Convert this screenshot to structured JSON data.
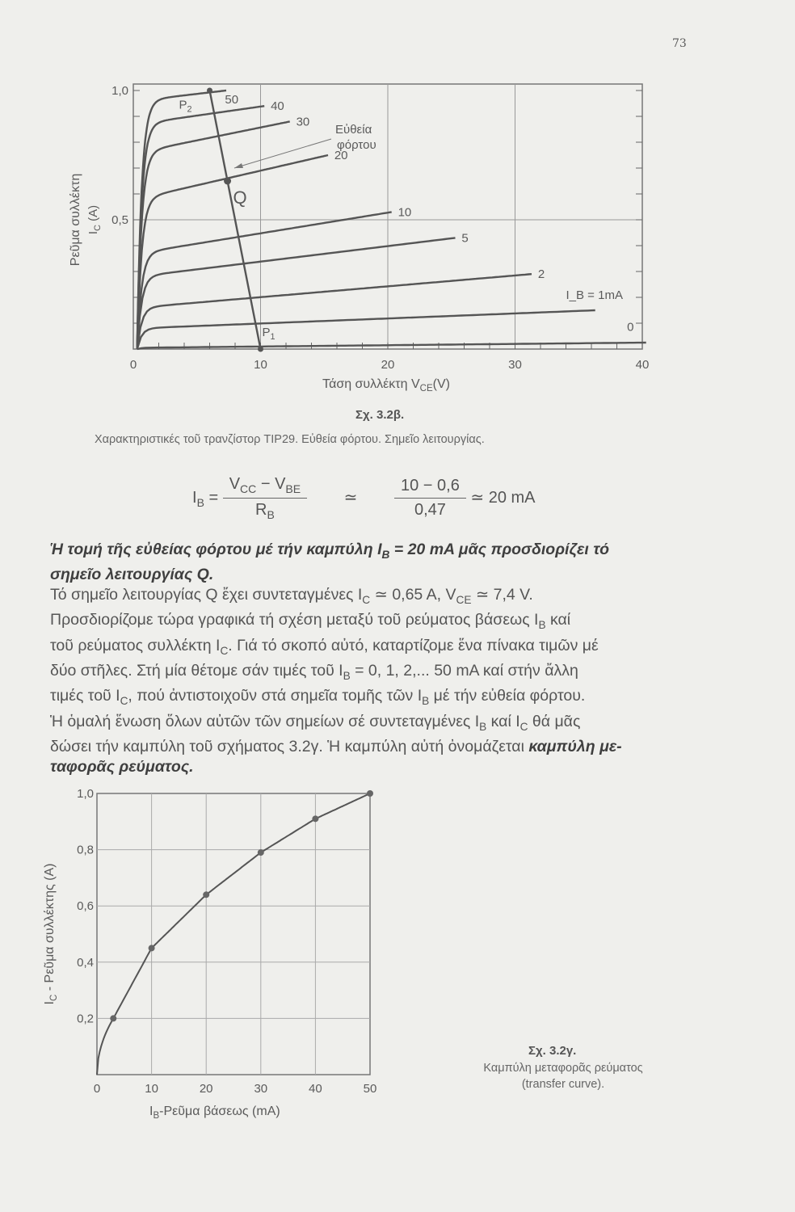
{
  "page_number": "73",
  "figure1": {
    "title": "Σχ. 3.2β.",
    "caption": "Χαρακτηριστικές τοῦ τρανζίστορ TIP29. Εὐθεία φόρτου. Σημεῖο λειτουργίας."
  },
  "formula": {
    "lhs": "I",
    "lhs_sub": "B",
    "num1": "V",
    "num1_sub": "CC",
    "num1_mid": " − V",
    "num1_sub2": "BE",
    "den1": "R",
    "den1_sub": "B",
    "approx": "≃",
    "num2": "10 − 0,6",
    "den2": "0,47",
    "result": "≃ 20 mA"
  },
  "body_lines": [
    [
      {
        "t": "Ἡ τομή τῆς εὐθείας φόρτου μέ τήν καμπύλη I",
        "b": true
      },
      {
        "t": "B",
        "sub": true,
        "b": true
      },
      {
        "t": " = 20 mA μᾶς προσδιορίζει τό",
        "b": true
      }
    ],
    [
      {
        "t": "σημεῖο λειτουργίας Q.",
        "b": true
      }
    ],
    [
      {
        "t": "   Τό σημεῖο λειτουργίας Q ἔχει συντεταγμένες I"
      },
      {
        "t": "C",
        "sub": true
      },
      {
        "t": " ≃ 0,65 A, V"
      },
      {
        "t": "CE",
        "sub": true
      },
      {
        "t": " ≃ 7,4 V."
      }
    ],
    [
      {
        "t": "   Προσδιορίζομε τώρα γραφικά τή σχέση μεταξύ τοῦ ρεύματος βάσεως I"
      },
      {
        "t": "B",
        "sub": true
      },
      {
        "t": " καί"
      }
    ],
    [
      {
        "t": "τοῦ ρεύματος συλλέκτη I"
      },
      {
        "t": "C",
        "sub": true
      },
      {
        "t": ". Γιά τό σκοπό αὐτό, καταρτίζομε ἕνα πίνακα τιμῶν μέ"
      }
    ],
    [
      {
        "t": "δύο στῆλες. Στή μία θέτομε σάν τιμές τοῦ I"
      },
      {
        "t": "B",
        "sub": true
      },
      {
        "t": " = 0, 1, 2,... 50 mA καί στήν ἄλλη"
      }
    ],
    [
      {
        "t": "τιμές τοῦ I"
      },
      {
        "t": "C",
        "sub": true
      },
      {
        "t": ", πού ἀντιστοιχοῦν στά σημεῖα τομῆς τῶν I"
      },
      {
        "t": "B",
        "sub": true
      },
      {
        "t": " μέ τήν εὐθεία φόρτου."
      }
    ],
    [
      {
        "t": "   Ἡ ὁμαλή ἕνωση ὅλων αὐτῶν τῶν σημείων σέ συντεταγμένες I"
      },
      {
        "t": "B",
        "sub": true
      },
      {
        "t": " καί I"
      },
      {
        "t": "C",
        "sub": true
      },
      {
        "t": " θά μᾶς"
      }
    ],
    [
      {
        "t": "δώσει τήν καμπύλη τοῦ σχήματος 3.2γ. Ἡ καμπύλη αὐτή ὀνομάζεται "
      },
      {
        "t": "καμπύλη με-",
        "b": true
      }
    ],
    [
      {
        "t": "ταφορᾶς ρεύματος.",
        "b": true
      }
    ]
  ],
  "figure2": {
    "title": "Σχ. 3.2γ.",
    "caption_line1": "Καμπύλη μεταφορᾶς ρεύματος",
    "caption_line2": "(transfer curve)."
  },
  "chart_data": [
    {
      "type": "line",
      "xlabel": "Τάση συλλέκτη V_CE(V)",
      "ylabel": "Ρεῦμα συλλέκτη I_C (A)",
      "xlim": [
        0,
        40
      ],
      "ylim": [
        0,
        1.0
      ],
      "xticks": [
        "0",
        "10",
        "20",
        "30",
        "40"
      ],
      "yticks": [
        "0,5",
        "1,0"
      ],
      "grid": true,
      "curves": [
        {
          "label": "50",
          "ib_mA": 50,
          "ic_start": 0.96,
          "v_end": 7,
          "ic_end": 1.0
        },
        {
          "label": "40",
          "ib_mA": 40,
          "ic_start": 0.87,
          "v_end": 10,
          "ic_end": 0.94
        },
        {
          "label": "30",
          "ib_mA": 30,
          "ic_start": 0.76,
          "v_end": 12,
          "ic_end": 0.88
        },
        {
          "label": "20",
          "ib_mA": 20,
          "ic_start": 0.58,
          "v_end": 15,
          "ic_end": 0.75
        },
        {
          "label": "10",
          "ib_mA": 10,
          "ic_start": 0.37,
          "v_end": 20,
          "ic_end": 0.53
        },
        {
          "label": "5",
          "ib_mA": 5,
          "ic_start": 0.28,
          "v_end": 25,
          "ic_end": 0.43
        },
        {
          "label": "2",
          "ib_mA": 2,
          "ic_start": 0.16,
          "v_end": 31,
          "ic_end": 0.29
        },
        {
          "label": "I_B = 1mA",
          "ib_mA": 1,
          "ic_start": 0.08,
          "v_end": 36,
          "ic_end": 0.15
        },
        {
          "label": "0",
          "ib_mA": 0,
          "ic_start": 0.005,
          "v_end": 40,
          "ic_end": 0.025
        }
      ],
      "load_line": {
        "label": "Εὐθεία φόρτου",
        "p1": {
          "name": "P1",
          "v": 10,
          "ic": 0
        },
        "p2": {
          "name": "P2",
          "v": 6,
          "ic": 1.0
        }
      },
      "q_point": {
        "name": "Q",
        "v": 7.4,
        "ic": 0.65
      }
    },
    {
      "type": "line",
      "xlabel": "I_B - Ρεῦμα βάσεως (mA)",
      "ylabel": "I_C - Ρεῦμα συλλέκτης (A)",
      "xlim": [
        0,
        50
      ],
      "ylim": [
        0,
        1.0
      ],
      "xticks": [
        "0",
        "10",
        "20",
        "30",
        "40",
        "50"
      ],
      "yticks": [
        "0,2",
        "0,4",
        "0,6",
        "0,8",
        "1,0"
      ],
      "grid": true,
      "x": [
        3,
        10,
        20,
        30,
        40,
        50
      ],
      "y": [
        0.2,
        0.45,
        0.64,
        0.79,
        0.91,
        1.0
      ]
    }
  ]
}
